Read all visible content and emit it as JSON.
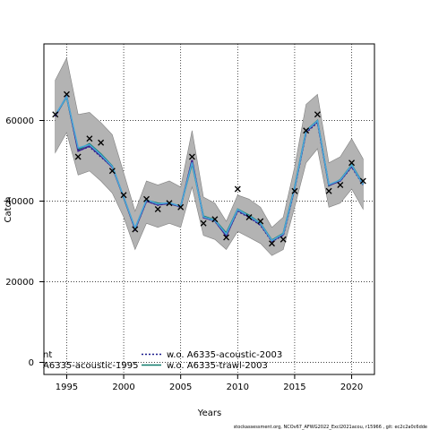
{
  "chart_data": {
    "type": "line",
    "xlabel": "Years",
    "ylabel": "Catch",
    "xlim": [
      1993,
      2022
    ],
    "ylim": [
      -3000,
      79000
    ],
    "xticks": [
      1995,
      2000,
      2005,
      2010,
      2015,
      2020
    ],
    "yticks": [
      0,
      20000,
      40000,
      60000
    ],
    "grid": true,
    "legend_placement": "bottom-left",
    "x": [
      1994,
      1995,
      1996,
      1997,
      1998,
      1999,
      2000,
      2001,
      2002,
      2003,
      2004,
      2005,
      2006,
      2007,
      2008,
      2009,
      2010,
      2011,
      2012,
      2013,
      2014,
      2015,
      2016,
      2017,
      2018,
      2019,
      2020,
      2021
    ],
    "observed": {
      "x": [
        1994,
        1995,
        1996,
        1997,
        1998,
        1999,
        2000,
        2001,
        2002,
        2003,
        2004,
        2005,
        2006,
        2007,
        2008,
        2009,
        2010,
        2011,
        2012,
        2013,
        2014,
        2015,
        2016,
        2017,
        2018,
        2019,
        2020,
        2021
      ],
      "y": [
        61500,
        66500,
        51000,
        55500,
        54500,
        47500,
        41500,
        33000,
        40500,
        38000,
        39500,
        38500,
        51000,
        34500,
        35500,
        31000,
        43000,
        36000,
        35000,
        29500,
        30500,
        42500,
        57500,
        61500,
        42500,
        44000,
        49500,
        45000
      ]
    },
    "band": {
      "upper": [
        70000,
        75500,
        61500,
        62000,
        59500,
        56500,
        47000,
        37500,
        45000,
        44000,
        45000,
        43500,
        57500,
        41000,
        39500,
        35000,
        41500,
        40500,
        38500,
        33500,
        36000,
        48500,
        64000,
        66500,
        49500,
        51000,
        55500,
        50500
      ],
      "lower": [
        52000,
        57000,
        46500,
        47500,
        45000,
        42000,
        36000,
        28000,
        34500,
        33500,
        34500,
        33500,
        43500,
        31500,
        30500,
        28000,
        32500,
        31000,
        29500,
        26500,
        28000,
        38500,
        49500,
        53000,
        38500,
        39500,
        43000,
        38000
      ]
    },
    "series": [
      {
        "name": "w.o. A6335-acoustic-2003",
        "color": "#1a1a8c",
        "dash": "2,2",
        "values": [
          61000,
          66000,
          52500,
          53500,
          51000,
          48500,
          41000,
          33000,
          40000,
          39000,
          39500,
          38500,
          50000,
          36000,
          35000,
          31500,
          37500,
          36000,
          34000,
          30000,
          31500,
          43000,
          57000,
          59500,
          44000,
          45000,
          48500,
          44000
        ]
      },
      {
        "name": "w.o. A6335-trawl-2003",
        "color": "#0e7a6a",
        "dash": "",
        "values": [
          61200,
          65800,
          52800,
          54200,
          51700,
          48700,
          40800,
          33200,
          40200,
          39500,
          39300,
          38800,
          49300,
          36300,
          35300,
          32100,
          38000,
          36500,
          34500,
          30300,
          32000,
          43500,
          57500,
          60000,
          43800,
          45300,
          49000,
          44300
        ]
      },
      {
        "name": "nt",
        "color": "#3b1f8f",
        "dash": "",
        "values": [
          61100,
          66000,
          52400,
          53700,
          51200,
          48400,
          40900,
          33000,
          40000,
          39100,
          39400,
          38600,
          50200,
          35900,
          35100,
          31300,
          37700,
          36100,
          34200,
          30100,
          31700,
          43200,
          57200,
          59800,
          43900,
          45000,
          48700,
          44200
        ]
      },
      {
        "name": "A6335-acoustic-1995",
        "color": "#4aa8d8",
        "dash": "",
        "values": [
          61300,
          65900,
          53200,
          54000,
          51500,
          48600,
          41000,
          33300,
          40300,
          39300,
          39600,
          38700,
          49600,
          36100,
          35200,
          31800,
          37900,
          36300,
          34400,
          30200,
          31900,
          43300,
          57400,
          59900,
          44100,
          45200,
          48900,
          44100
        ]
      }
    ],
    "legend": [
      {
        "label": "nt",
        "key": "nt"
      },
      {
        "label": "A6335-acoustic-1995",
        "key": "A6335-acoustic-1995"
      },
      {
        "label": "w.o. A6335-acoustic-2003",
        "key": "w.o. A6335-acoustic-2003"
      },
      {
        "label": "w.o. A6335-trawl-2003",
        "key": "w.o. A6335-trawl-2003"
      }
    ]
  },
  "footer": "stockassessment.org, NCOv67_AFWG2022_Excl2021acou, r15966 , git: ec2c2a0c6dde"
}
